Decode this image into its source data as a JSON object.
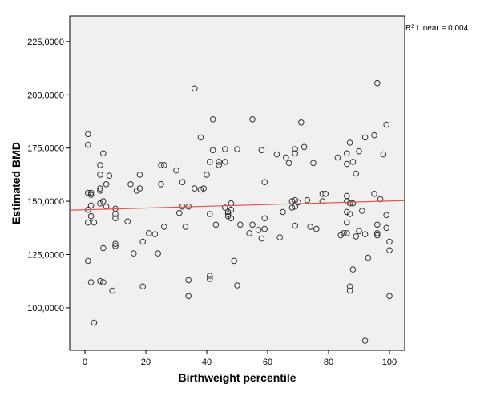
{
  "chart_data": {
    "type": "scatter",
    "xlabel": "Birthweight percentile",
    "ylabel": "Estimated BMD",
    "xlim": [
      -5,
      105
    ],
    "ylim": [
      80000,
      237000
    ],
    "x_ticks": [
      0,
      20,
      40,
      60,
      80,
      100
    ],
    "y_ticks": [
      100000,
      125000,
      150000,
      175000,
      200000,
      225000
    ],
    "x_tick_labels": [
      "0",
      "20",
      "40",
      "60",
      "80",
      "100"
    ],
    "y_tick_labels": [
      "100,0000",
      "125,0000",
      "150,0000",
      "175,0000",
      "200,0000",
      "225,0000"
    ],
    "grid": false,
    "plot_background": "#f0f0f0",
    "marker_color": "#333333",
    "fit_line": {
      "type": "linear",
      "color": "#e8504a",
      "label_prefix": "R",
      "label_sup": "2",
      "label_suffix": " Linear = 0,004",
      "points": [
        [
          -5,
          145800
        ],
        [
          105,
          150300
        ]
      ]
    },
    "points": [
      [
        1,
        181500
      ],
      [
        1,
        176500
      ],
      [
        1,
        154000
      ],
      [
        1,
        146000
      ],
      [
        1,
        140000
      ],
      [
        1,
        122000
      ],
      [
        2,
        154000
      ],
      [
        2,
        153000
      ],
      [
        2,
        148000
      ],
      [
        2,
        143000
      ],
      [
        2,
        112000
      ],
      [
        3,
        140000
      ],
      [
        3,
        93000
      ],
      [
        5,
        167000
      ],
      [
        5,
        162500
      ],
      [
        5,
        156000
      ],
      [
        5,
        155000
      ],
      [
        5,
        149000
      ],
      [
        5,
        112500
      ],
      [
        6,
        172500
      ],
      [
        6,
        150000
      ],
      [
        6,
        128000
      ],
      [
        6,
        112000
      ],
      [
        7,
        158000
      ],
      [
        7,
        147500
      ],
      [
        8,
        162000
      ],
      [
        9,
        108000
      ],
      [
        10,
        146500
      ],
      [
        10,
        144000
      ],
      [
        10,
        142000
      ],
      [
        10,
        130000
      ],
      [
        10,
        129000
      ],
      [
        14,
        140500
      ],
      [
        15,
        158000
      ],
      [
        16,
        125500
      ],
      [
        17,
        155000
      ],
      [
        18,
        162500
      ],
      [
        18,
        156000
      ],
      [
        19,
        131000
      ],
      [
        19,
        110000
      ],
      [
        21,
        135000
      ],
      [
        23,
        134500
      ],
      [
        24,
        125500
      ],
      [
        25,
        167000
      ],
      [
        25,
        158000
      ],
      [
        26,
        167000
      ],
      [
        26,
        138000
      ],
      [
        30,
        164500
      ],
      [
        31,
        144500
      ],
      [
        32,
        159000
      ],
      [
        32,
        147500
      ],
      [
        33,
        138000
      ],
      [
        34,
        147500
      ],
      [
        34,
        113000
      ],
      [
        34,
        105500
      ],
      [
        36,
        203000
      ],
      [
        36,
        156000
      ],
      [
        38,
        180000
      ],
      [
        38,
        155500
      ],
      [
        39,
        156000
      ],
      [
        40,
        162500
      ],
      [
        41,
        168500
      ],
      [
        41,
        144000
      ],
      [
        41,
        115000
      ],
      [
        41,
        113500
      ],
      [
        42,
        188500
      ],
      [
        42,
        174000
      ],
      [
        43,
        139000
      ],
      [
        44,
        168500
      ],
      [
        44,
        167000
      ],
      [
        46,
        174500
      ],
      [
        46,
        168500
      ],
      [
        46,
        147000
      ],
      [
        47,
        145000
      ],
      [
        47,
        144000
      ],
      [
        47,
        143000
      ],
      [
        48,
        149000
      ],
      [
        48,
        146000
      ],
      [
        48,
        142000
      ],
      [
        49,
        122000
      ],
      [
        50,
        174500
      ],
      [
        50,
        110500
      ],
      [
        51,
        139000
      ],
      [
        54,
        135000
      ],
      [
        55,
        188500
      ],
      [
        55,
        139000
      ],
      [
        57,
        136500
      ],
      [
        58,
        174000
      ],
      [
        58,
        132500
      ],
      [
        59,
        159000
      ],
      [
        59,
        142000
      ],
      [
        59,
        137000
      ],
      [
        63,
        172000
      ],
      [
        64,
        133000
      ],
      [
        65,
        145000
      ],
      [
        66,
        170500
      ],
      [
        67,
        168000
      ],
      [
        68,
        150000
      ],
      [
        68,
        147000
      ],
      [
        69,
        174500
      ],
      [
        69,
        172500
      ],
      [
        69,
        150500
      ],
      [
        69,
        147500
      ],
      [
        69,
        138500
      ],
      [
        70,
        149500
      ],
      [
        71,
        187000
      ],
      [
        72,
        175500
      ],
      [
        73,
        150500
      ],
      [
        74,
        138000
      ],
      [
        75,
        168000
      ],
      [
        76,
        137000
      ],
      [
        78,
        153500
      ],
      [
        78,
        150000
      ],
      [
        79,
        153500
      ],
      [
        83,
        170500
      ],
      [
        84,
        134000
      ],
      [
        85,
        135000
      ],
      [
        86,
        172500
      ],
      [
        86,
        167500
      ],
      [
        86,
        152500
      ],
      [
        86,
        150000
      ],
      [
        86,
        145000
      ],
      [
        86,
        140000
      ],
      [
        86,
        135000
      ],
      [
        87,
        177500
      ],
      [
        87,
        149000
      ],
      [
        87,
        144000
      ],
      [
        87,
        110000
      ],
      [
        87,
        108000
      ],
      [
        88,
        168500
      ],
      [
        88,
        149000
      ],
      [
        88,
        118000
      ],
      [
        89,
        163000
      ],
      [
        89,
        133500
      ],
      [
        90,
        173500
      ],
      [
        90,
        136000
      ],
      [
        91,
        145500
      ],
      [
        92,
        134500
      ],
      [
        92,
        180000
      ],
      [
        92,
        84500
      ],
      [
        93,
        123500
      ],
      [
        95,
        181000
      ],
      [
        95,
        153500
      ],
      [
        96,
        205500
      ],
      [
        96,
        139000
      ],
      [
        96,
        135000
      ],
      [
        96,
        134000
      ],
      [
        97,
        151000
      ],
      [
        98,
        172000
      ],
      [
        99,
        186000
      ],
      [
        99,
        143500
      ],
      [
        99,
        137500
      ],
      [
        100,
        131000
      ],
      [
        100,
        127000
      ],
      [
        100,
        105500
      ]
    ]
  }
}
